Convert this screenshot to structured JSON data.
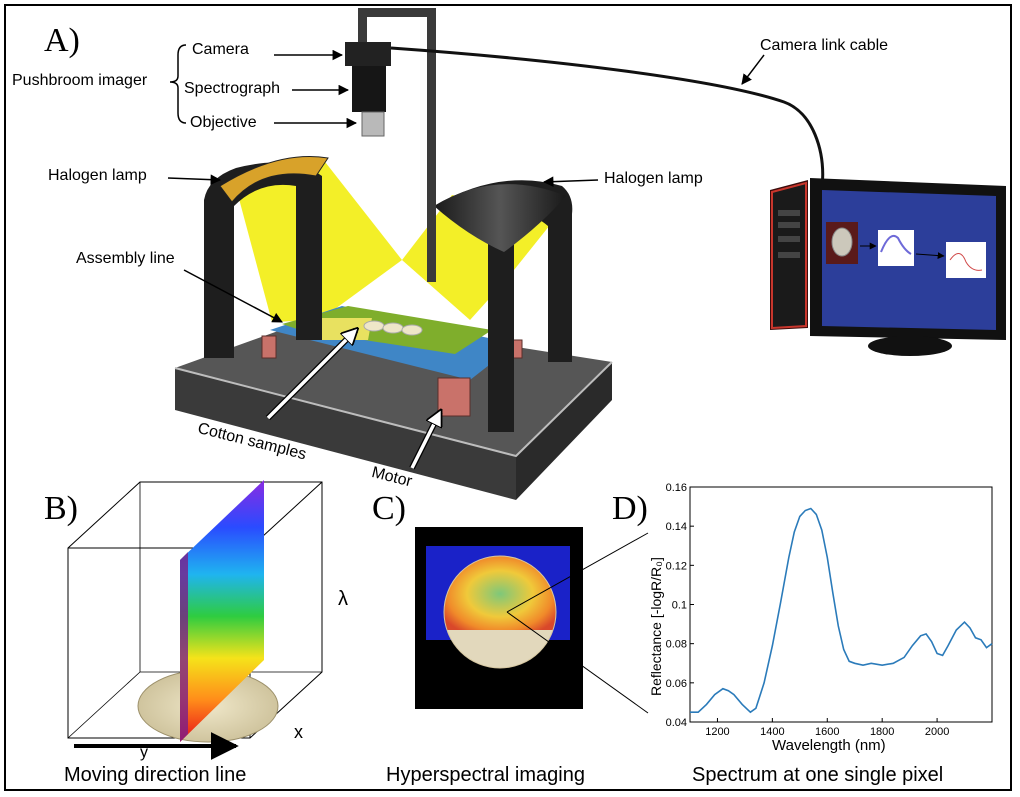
{
  "panels": {
    "a": "A)",
    "b": "B)",
    "c": "C)",
    "d": "D)"
  },
  "panel_a": {
    "pushbroom_imager": "Pushbroom imager",
    "camera": "Camera",
    "spectrograph": "Spectrograph",
    "objective": "Objective",
    "camera_link_cable": "Camera link cable",
    "halogen_lamp_left": "Halogen lamp",
    "halogen_lamp_right": "Halogen lamp",
    "assembly_line": "Assembly line",
    "cotton_samples": "Cotton samples",
    "motor": "Motor"
  },
  "panel_b": {
    "lambda": "λ",
    "x_label": "x",
    "y_label": "y",
    "caption": "Moving direction line"
  },
  "panel_c": {
    "caption": "Hyperspectral imaging"
  },
  "panel_d": {
    "caption": "Spectrum at one single pixel"
  },
  "colors": {
    "lamp_yellow": "#f2ee1c",
    "belt_green": "#7fae2c",
    "belt_blue": "#3f86c6",
    "monitor_screen": "#2c3e9a",
    "spectrum_line": "#2b7bba"
  },
  "chart_data": {
    "type": "line",
    "xlabel": "Wavelength (nm)",
    "ylabel": "Reflectance [-logR/R₀]",
    "xlim": [
      1100,
      2200
    ],
    "ylim": [
      0.04,
      0.16
    ],
    "xticks": [
      1200,
      1400,
      1600,
      1800,
      2000
    ],
    "yticks": [
      0.04,
      0.06,
      0.08,
      0.1,
      0.12,
      0.14,
      0.16
    ],
    "grid": false,
    "series": [
      {
        "x": [
          1100,
          1130,
          1160,
          1190,
          1220,
          1240,
          1260,
          1290,
          1320,
          1340,
          1370,
          1400,
          1430,
          1460,
          1480,
          1500,
          1520,
          1540,
          1560,
          1580,
          1600,
          1620,
          1640,
          1660,
          1680,
          1700,
          1730,
          1760,
          1800,
          1840,
          1880,
          1910,
          1940,
          1960,
          1980,
          2000,
          2020,
          2040,
          2070,
          2100,
          2120,
          2140,
          2160,
          2180,
          2200
        ],
        "y": [
          0.045,
          0.045,
          0.049,
          0.054,
          0.057,
          0.056,
          0.054,
          0.049,
          0.045,
          0.047,
          0.06,
          0.079,
          0.101,
          0.124,
          0.137,
          0.145,
          0.148,
          0.149,
          0.146,
          0.138,
          0.124,
          0.106,
          0.089,
          0.077,
          0.071,
          0.07,
          0.069,
          0.07,
          0.069,
          0.07,
          0.073,
          0.079,
          0.084,
          0.085,
          0.081,
          0.075,
          0.074,
          0.079,
          0.087,
          0.091,
          0.088,
          0.083,
          0.082,
          0.078,
          0.08
        ]
      }
    ]
  }
}
